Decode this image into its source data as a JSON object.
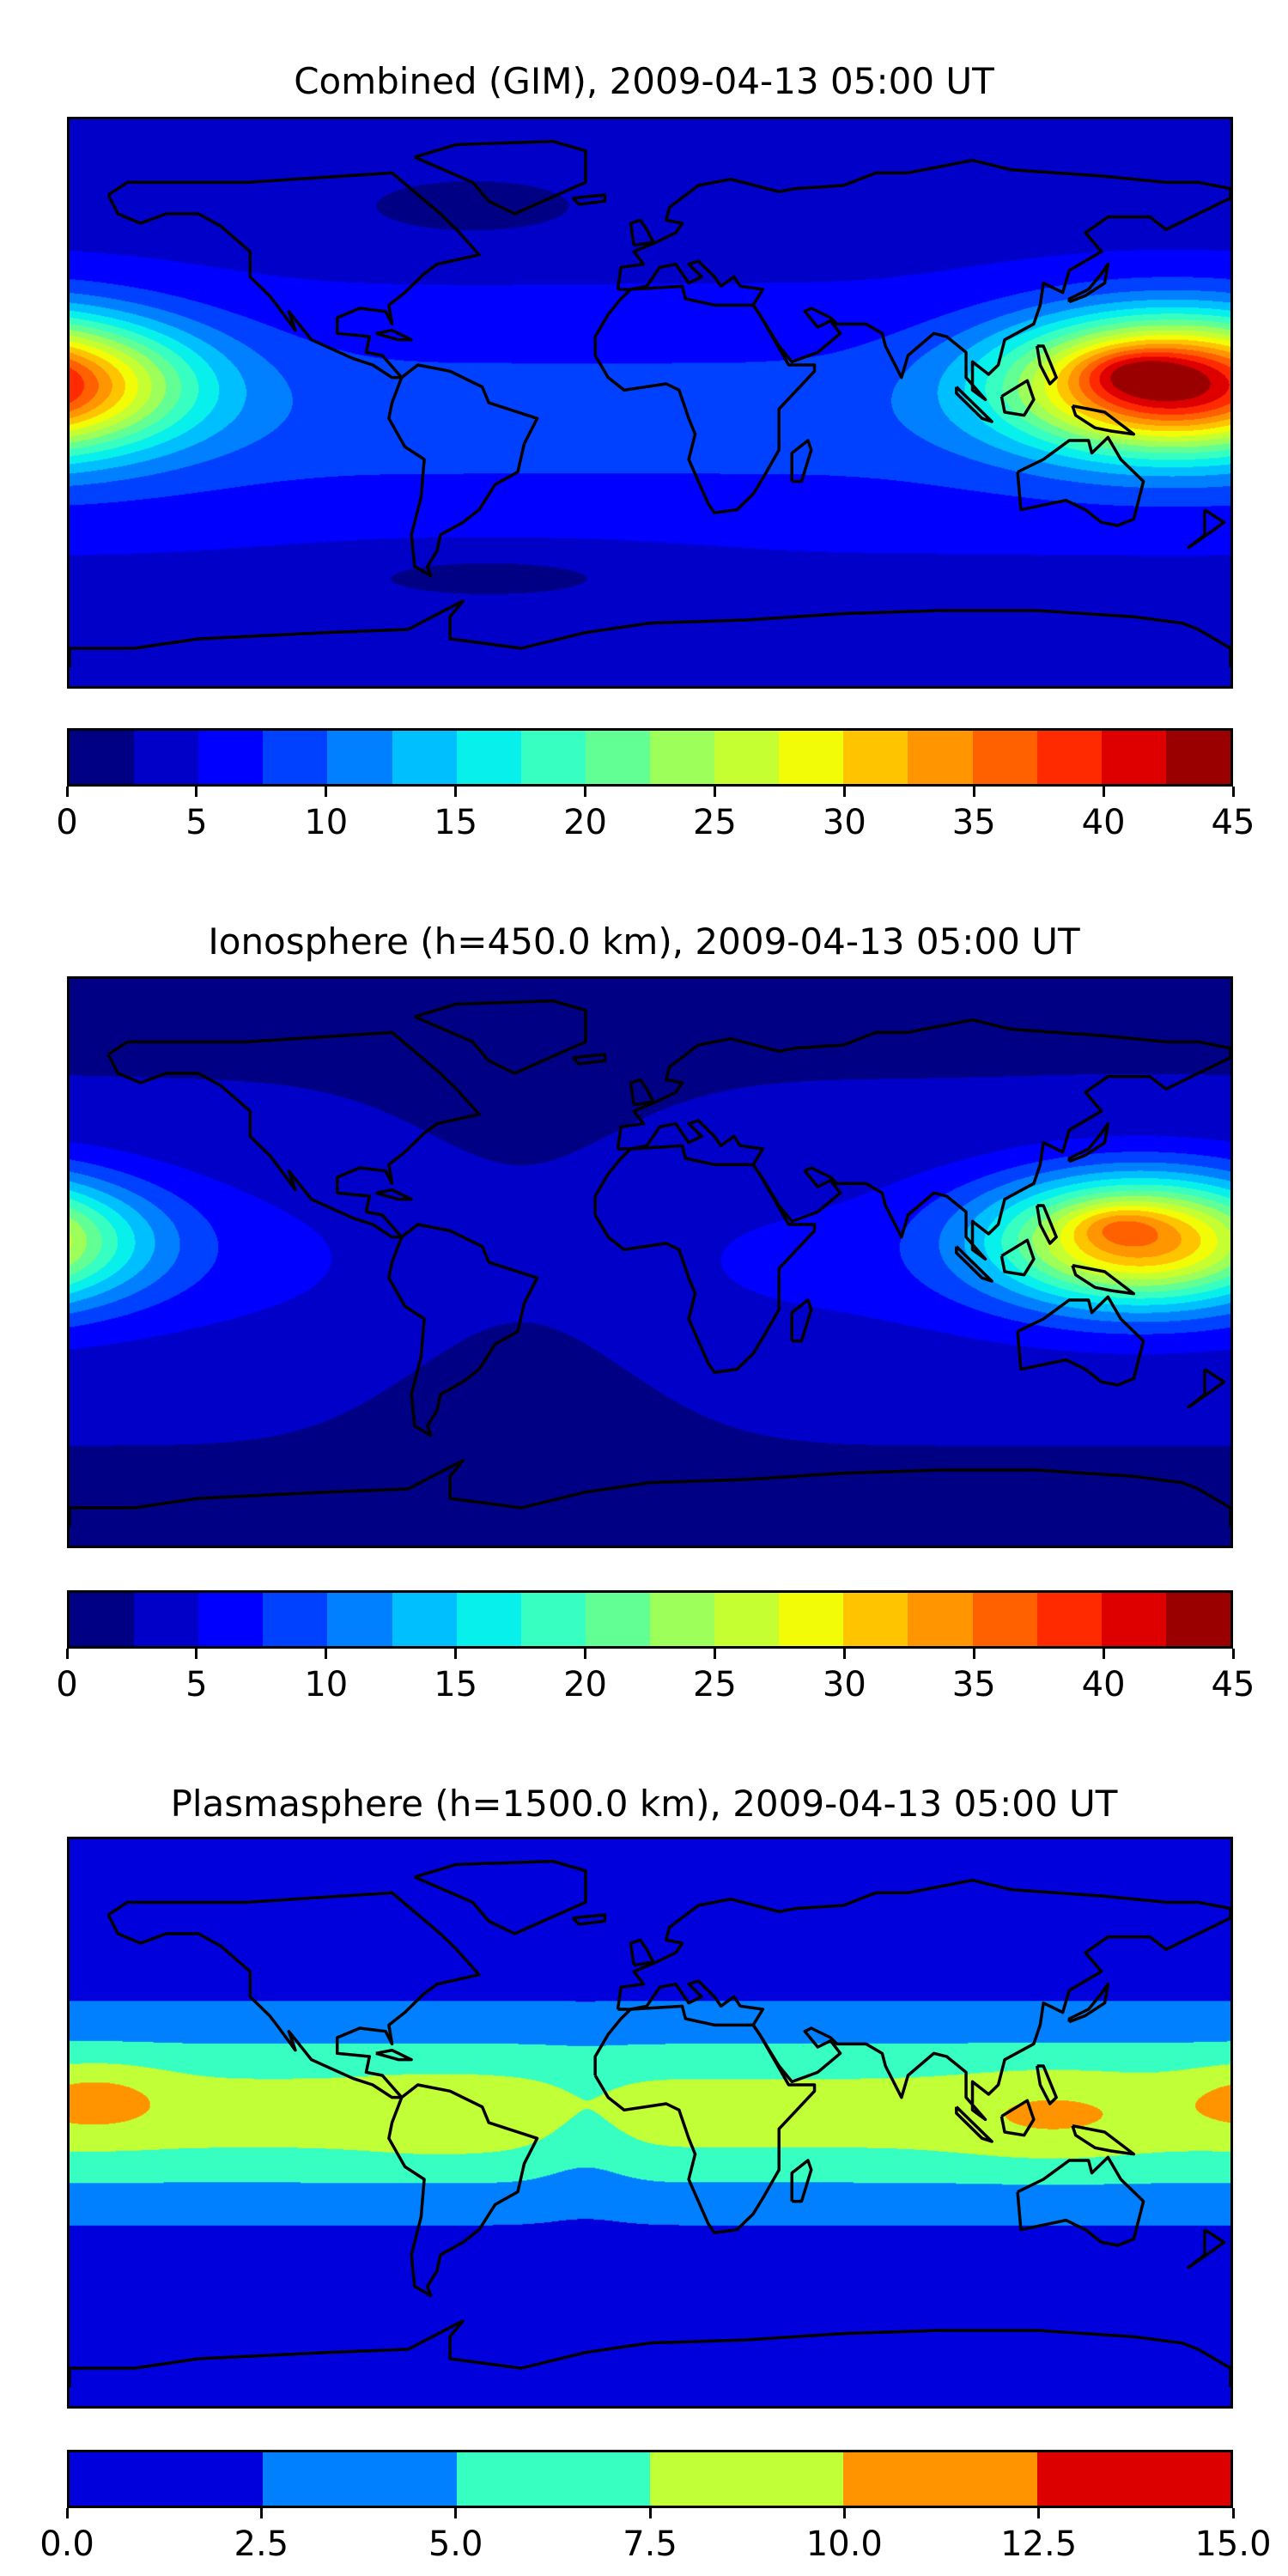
{
  "chart_data": [
    {
      "type": "heatmap",
      "title": "Combined (GIM), 2009-04-13 05:00 UT",
      "projection": "equirectangular, global",
      "x_range": [
        -180,
        180
      ],
      "y_range": [
        -90,
        90
      ],
      "colorbar": {
        "levels": [
          0,
          2.5,
          5,
          7.5,
          10,
          12.5,
          15,
          17.5,
          20,
          22.5,
          25,
          27.5,
          30,
          32.5,
          35,
          37.5,
          40,
          42.5,
          45
        ],
        "tick_labels": [
          "0",
          "5",
          "10",
          "15",
          "20",
          "25",
          "30",
          "35",
          "40",
          "45"
        ],
        "tick_values": [
          0,
          5,
          10,
          15,
          20,
          25,
          30,
          35,
          40,
          45
        ],
        "colors": [
          "#000085",
          "#0000c8",
          "#0000ff",
          "#0040ff",
          "#0080ff",
          "#00bfff",
          "#08f0ec",
          "#36ffc1",
          "#62ff95",
          "#9dff5a",
          "#c6ff31",
          "#f1fc06",
          "#ffc400",
          "#ff9500",
          "#ff6000",
          "#ff2a00",
          "#de0000",
          "#9a0000"
        ]
      },
      "features": {
        "max_value_approx": 40,
        "max_location": "western Pacific, east of Philippines",
        "secondary_peak": "central Pacific near date line"
      }
    },
    {
      "type": "heatmap",
      "title": "Ionosphere  (h=450.0 km), 2009-04-13 05:00 UT",
      "projection": "equirectangular, global",
      "x_range": [
        -180,
        180
      ],
      "y_range": [
        -90,
        90
      ],
      "colorbar": {
        "levels": [
          0,
          2.5,
          5,
          7.5,
          10,
          12.5,
          15,
          17.5,
          20,
          22.5,
          25,
          27.5,
          30,
          32.5,
          35,
          37.5,
          40,
          42.5,
          45
        ],
        "tick_labels": [
          "0",
          "5",
          "10",
          "15",
          "20",
          "25",
          "30",
          "35",
          "40",
          "45"
        ],
        "tick_values": [
          0,
          5,
          10,
          15,
          20,
          25,
          30,
          35,
          40,
          45
        ],
        "colors": [
          "#000085",
          "#0000c8",
          "#0000ff",
          "#0040ff",
          "#0080ff",
          "#00bfff",
          "#08f0ec",
          "#36ffc1",
          "#62ff95",
          "#9dff5a",
          "#c6ff31",
          "#f1fc06",
          "#ffc400",
          "#ff9500",
          "#ff6000",
          "#ff2a00",
          "#de0000",
          "#9a0000"
        ]
      },
      "features": {
        "max_value_approx": 33,
        "max_location": "western Pacific, east of Philippines"
      }
    },
    {
      "type": "heatmap",
      "title": "Plasmasphere (h=1500.0 km), 2009-04-13 05:00 UT",
      "projection": "equirectangular, global",
      "x_range": [
        -180,
        180
      ],
      "y_range": [
        -90,
        90
      ],
      "colorbar": {
        "levels": [
          0,
          2.5,
          5,
          7.5,
          10,
          12.5,
          15
        ],
        "tick_labels": [
          "0.0",
          "2.5",
          "5.0",
          "7.5",
          "10.0",
          "12.5",
          "15.0"
        ],
        "tick_values": [
          0,
          2.5,
          5,
          7.5,
          10,
          12.5,
          15
        ],
        "colors": [
          "#0000dd",
          "#0080ff",
          "#36ffc1",
          "#c1ff36",
          "#ff9400",
          "#dd0000"
        ]
      },
      "features": {
        "max_value_approx": 11,
        "max_location": "central Pacific near date line"
      }
    }
  ]
}
